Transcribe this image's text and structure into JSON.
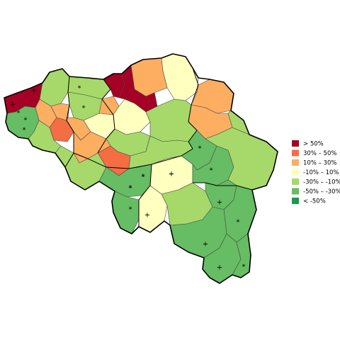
{
  "colors": {
    "gt50": "#a50026",
    "p30_50": "#f46d43",
    "p10_30": "#fdae61",
    "m10_10": "#ffffbf",
    "m30_m10": "#a6d96a",
    "m50_m30": "#66bd63",
    "lt_m50": "#1a9850"
  },
  "legend": {
    "items": [
      {
        "key": "gt50",
        "color": "#a50026",
        "label": ">  50%"
      },
      {
        "key": "p30_50",
        "color": "#f46d43",
        "label": "30%  –   50%"
      },
      {
        "key": "p10_30",
        "color": "#fdae61",
        "label": "10%  –   30%"
      },
      {
        "key": "m10_10",
        "color": "#ffffbf",
        "label": "-10%  –   10%"
      },
      {
        "key": "m30_m10",
        "color": "#a6d96a",
        "label": "-30%  –  -10%"
      },
      {
        "key": "m50_m30",
        "color": "#66bd63",
        "label": "-50%  –  -30%"
      },
      {
        "key": "lt_m50",
        "color": "#1a9850",
        "label": "<  -50%"
      }
    ]
  },
  "markers": [
    {
      "symbol": "+"
    },
    {
      "symbol": "+"
    },
    {
      "symbol": "*"
    },
    {
      "symbol": "*"
    },
    {
      "symbol": "*"
    },
    {
      "symbol": "*"
    },
    {
      "symbol": "*"
    },
    {
      "symbol": "+"
    },
    {
      "symbol": "+"
    },
    {
      "symbol": "*"
    },
    {
      "symbol": "*"
    },
    {
      "symbol": "*"
    },
    {
      "symbol": "+"
    },
    {
      "symbol": "*"
    },
    {
      "symbol": "*"
    },
    {
      "symbol": "+"
    },
    {
      "symbol": "+"
    },
    {
      "symbol": "*"
    },
    {
      "symbol": "*"
    },
    {
      "symbol": "+"
    },
    {
      "symbol": "*"
    },
    {
      "symbol": "*"
    }
  ]
}
